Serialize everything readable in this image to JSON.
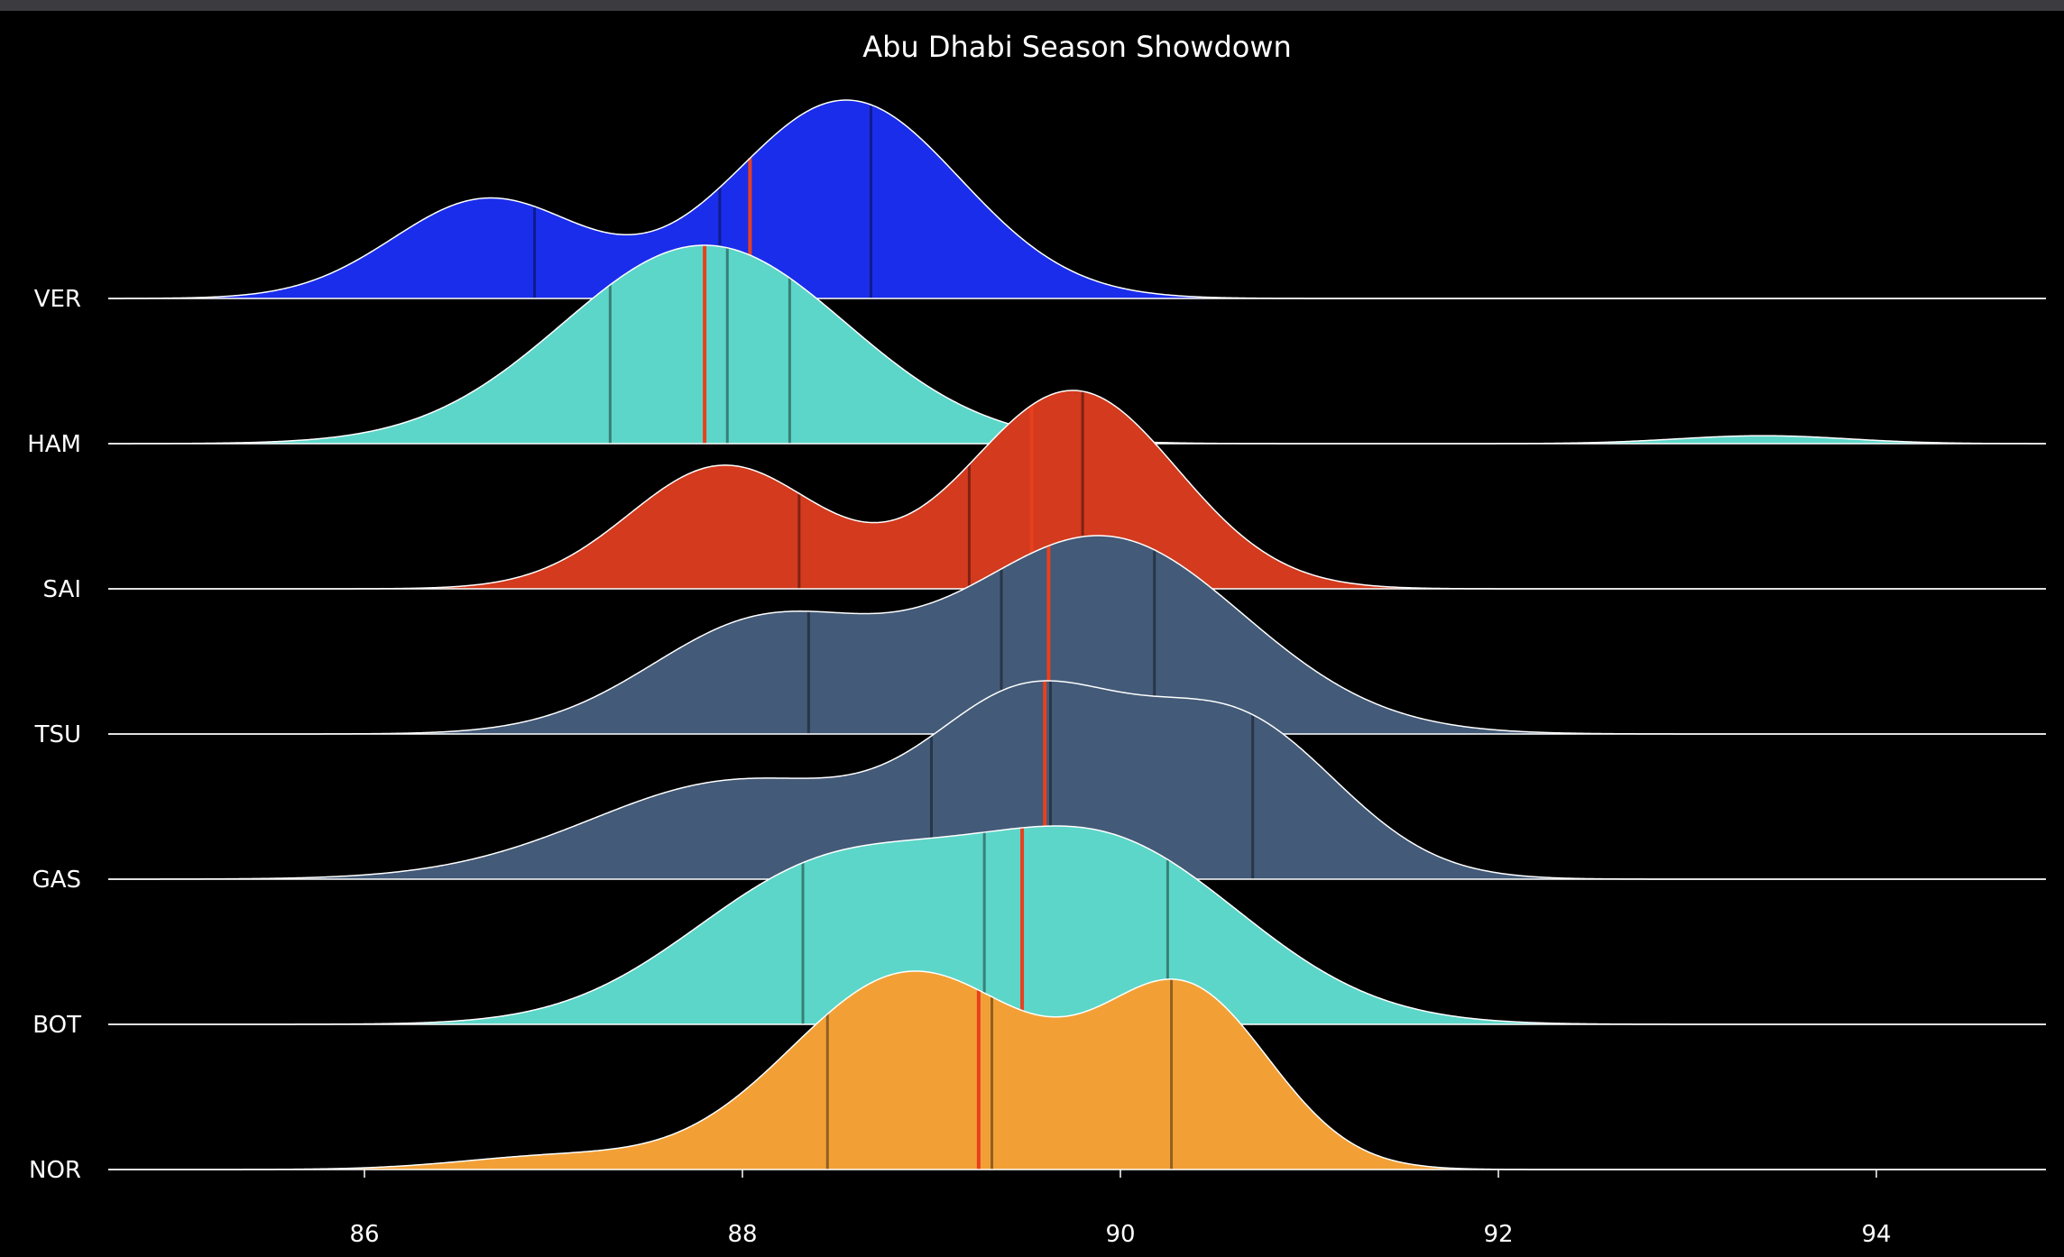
{
  "chart_data": {
    "type": "ridgeline",
    "title": "Abu Dhabi Season Showdown",
    "xlabel": "",
    "ylabel": "",
    "xlim": [
      84.6,
      95
    ],
    "x_ticks": [
      86,
      88,
      90,
      92,
      94
    ],
    "grid": false,
    "legend": "none",
    "series": [
      {
        "name": "VER",
        "color": "#1a2deb",
        "components": [
          [
            86.65,
            0.5,
            0.5
          ],
          [
            88.55,
            0.6,
            1.0
          ]
        ],
        "quartiles": [
          86.9,
          87.88,
          88.68
        ],
        "mean": 88.04
      },
      {
        "name": "HAM",
        "color": "#5cd6c8",
        "components": [
          [
            87.8,
            0.75,
            1.0
          ],
          [
            93.4,
            0.45,
            0.04
          ]
        ],
        "quartiles": [
          87.3,
          87.92,
          88.25
        ],
        "mean": 87.8
      },
      {
        "name": "SAI",
        "color": "#d33a1e",
        "components": [
          [
            87.9,
            0.5,
            0.62
          ],
          [
            89.75,
            0.55,
            1.0
          ]
        ],
        "quartiles": [
          88.3,
          89.2,
          89.8
        ],
        "mean": 89.53
      },
      {
        "name": "TSU",
        "color": "#435a78",
        "components": [
          [
            88.1,
            0.6,
            0.55
          ],
          [
            89.9,
            0.75,
            1.0
          ]
        ],
        "quartiles": [
          88.35,
          89.37,
          90.18
        ],
        "mean": 89.62
      },
      {
        "name": "GAS",
        "color": "#435a78",
        "components": [
          [
            88.0,
            0.8,
            0.5
          ],
          [
            89.5,
            0.5,
            0.8
          ],
          [
            90.6,
            0.55,
            0.8
          ]
        ],
        "quartiles": [
          89.0,
          89.63,
          90.7
        ],
        "mean": 89.6
      },
      {
        "name": "BOT",
        "color": "#5cd6c8",
        "components": [
          [
            88.4,
            0.7,
            0.8
          ],
          [
            89.9,
            0.75,
            1.0
          ]
        ],
        "quartiles": [
          88.32,
          89.28,
          90.25
        ],
        "mean": 89.48
      },
      {
        "name": "NOR",
        "color": "#f2a036",
        "components": [
          [
            87.0,
            0.5,
            0.06
          ],
          [
            88.9,
            0.65,
            0.92
          ],
          [
            90.35,
            0.45,
            0.8
          ]
        ],
        "quartiles": [
          88.45,
          89.32,
          90.27
        ],
        "mean": 89.25
      }
    ]
  }
}
